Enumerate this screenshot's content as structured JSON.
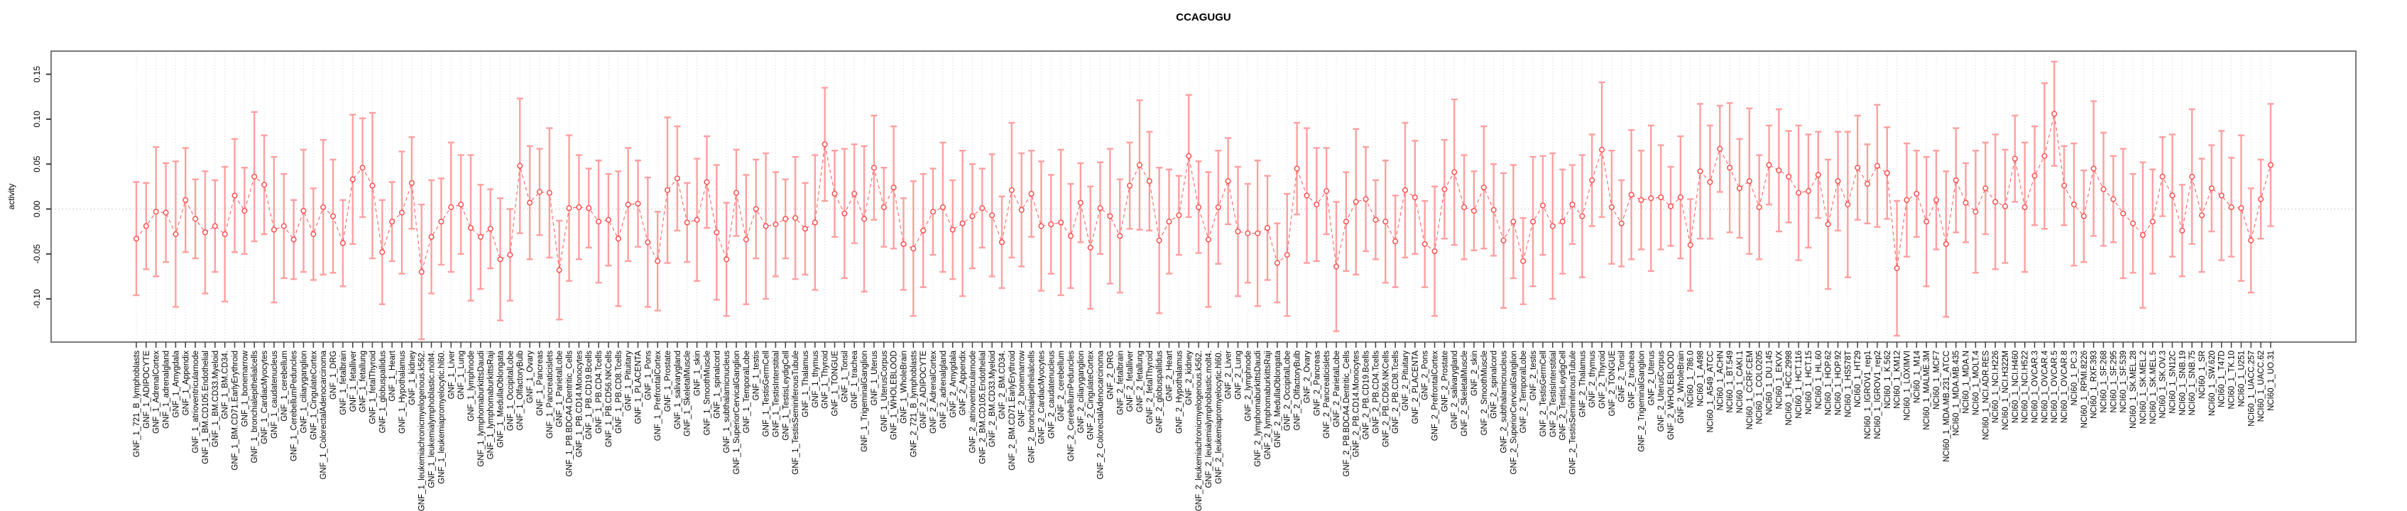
{
  "title": "CCAGUGU",
  "ylabel": "activity",
  "chart_data": {
    "type": "scatter",
    "title": "CCAGUGU",
    "xlabel": "",
    "ylabel": "activity",
    "ylim": [
      -0.148,
      0.176
    ],
    "yticks": [
      0.15,
      0.1,
      0.05,
      0.0,
      -0.05,
      -0.1
    ],
    "ytick_labels": [
      "0.15",
      "0.10",
      "0.05",
      "0.00",
      "-0.05",
      "-0.10"
    ],
    "grid": "light dotted vertical line per category; dotted horizontal line at 0",
    "legend": "none",
    "marker": "open-circle with error bars, connected by dashed line",
    "colors": {
      "point": "#ff4f4f",
      "line": "#ff5050",
      "errorbar": "#ff9f9f",
      "grid": "#d9d9d9",
      "box": "#7a7a7a",
      "tick": "#3d3d3d"
    },
    "categories": [
      "GNF_1_721_B_lymphoblasts",
      "GNF_1_ADIPOCYTE",
      "GNF_1_AdrenalCortex",
      "GNF_1_adrenalgland",
      "GNF_1_Amygdala",
      "GNF_1_Appendix",
      "GNF_1_atrioventricularnode",
      "GNF_1_BM.CD105.Endothelial",
      "GNF_1_BM.CD33.Myeloid",
      "GNF_1_BM.CD34.",
      "GNF_1_BM.CD71.EarlyErythroid",
      "GNF_1_bonemarrow",
      "GNF_1_bronchialepithelialcells",
      "GNF_1_CardiacMyocytes",
      "GNF_1_caudatenucleus",
      "GNF_1_cerebellum",
      "GNF_1_CerebellumPeduncles",
      "GNF_1_ciliaryganglion",
      "GNF_1_CingulateCortex",
      "GNF_1_ColorectalAdenocarcinoma",
      "GNF_1_DRG",
      "GNF_1_fetalbrain",
      "GNF_1_fetalliver",
      "GNF_1_fetallung",
      "GNF_1_fetalThyroid",
      "GNF_1_globuspallidus",
      "GNF_1_Heart",
      "GNF_1_Hypothalamus",
      "GNF_1_kidney",
      "GNF_1_leukemiachronicmyelogenous.k562.",
      "GNF_1_leukemialymphoblastic.molt4.",
      "GNF_1_leukemiapromyelocytic.hl60.",
      "GNF_1_Liver",
      "GNF_1_Lung",
      "GNF_1_lymphnode",
      "GNF_1_lymphomaburkittsDaudi",
      "GNF_1_lymphomaburkittsRaji",
      "GNF_1_MedullaOblongata",
      "GNF_1_OccipitalLobe",
      "GNF_1_OlfactoryBulb",
      "GNF_1_Ovary",
      "GNF_1_Pancreas",
      "GNF_1_Pancreaticislets",
      "GNF_1_ParietalLobe",
      "GNF_1_PB.BDCA4.Dentritic_Cells",
      "GNF_1_PB.CD14.Monocytes",
      "GNF_1_PB.CD19.Bcells",
      "GNF_1_PB.CD4.Tcells",
      "GNF_1_PB.CD56.NKCells",
      "GNF_1_PB.CD8.Tcells",
      "GNF_1_Pituitary",
      "GNF_1_PLACENTA",
      "GNF_1_Pons",
      "GNF_1_PrefrontalCortex",
      "GNF_1_Prostate",
      "GNF_1_salivarygland",
      "GNF_1_SkeletalMuscle",
      "GNF_1_skin",
      "GNF_1_SmoothMuscle",
      "GNF_1_spinalcord",
      "GNF_1_subthalamicnucleus",
      "GNF_1_SuperiorCervicalGanglion",
      "GNF_1_TemporalLobe",
      "GNF_1_testis",
      "GNF_1_TestisGermCell",
      "GNF_1_TestisInterstitial",
      "GNF_1_TestisLeydigCell",
      "GNF_1_TestisSeminiferousTubule",
      "GNF_1_Thalamus",
      "GNF_1_thymus",
      "GNF_1_Thyroid",
      "GNF_1_TONGUE",
      "GNF_1_Tonsil",
      "GNF_1_trachea",
      "GNF_1_TrigeminalGanglion",
      "GNF_1_Uterus",
      "GNF_1_UterusCorpus",
      "GNF_1_WHOLEBLOOD",
      "GNF_1_WholeBrain",
      "GNF_2_721_B_lymphoblasts",
      "GNF_2_ADIPOCYTE",
      "GNF_2_AdrenalCortex",
      "GNF_2_adrenalgland",
      "GNF_2_Amygdala",
      "GNF_2_Appendix",
      "GNF_2_atrioventricularnode",
      "GNF_2_BM.CD105.Endothelial",
      "GNF_2_BM.CD33.Myeloid",
      "GNF_2_BM.CD34.",
      "GNF_2_BM.CD71.EarlyErythroid",
      "GNF_2_bonemarrow",
      "GNF_2_bronchialepithelialcells",
      "GNF_2_CardiacMyocytes",
      "GNF_2_caudatenucleus",
      "GNF_2_cerebellum",
      "GNF_2_CerebellumPeduncles",
      "GNF_2_ciliaryganglion",
      "GNF_2_CingulateCortex",
      "GNF_2_ColorectalAdenocarcinoma",
      "GNF_2_DRG",
      "GNF_2_fetalbrain",
      "GNF_2_fetalliver",
      "GNF_2_fetallung",
      "GNF_2_fetalThyroid",
      "GNF_2_globuspallidus",
      "GNF_2_Heart",
      "GNF_2_Hypothalamus",
      "GNF_2_kidney",
      "GNF_2_leukemiachronicmyelogenous.k562.",
      "GNF_2_leukemialymphoblastic.molt4.",
      "GNF_2_leukemiapromyelocytic.hl60.",
      "GNF_2_Liver",
      "GNF_2_Lung",
      "GNF_2_lymphnode",
      "GNF_2_lymphomaburkittsDaudi",
      "GNF_2_lymphomaburkittsRaji",
      "GNF_2_MedullaOblongata",
      "GNF_2_OccipitalLobe",
      "GNF_2_OlfactoryBulb",
      "GNF_2_Ovary",
      "GNF_2_Pancreas",
      "GNF_2_Pancreaticislets",
      "GNF_2_ParietalLobe",
      "GNF_2_PB.BDCA4.Dentritic_Cells",
      "GNF_2_PB.CD14.Monocytes",
      "GNF_2_PB.CD19.Bcells",
      "GNF_2_PB.CD4.Tcells",
      "GNF_2_PB.CD56.NKCells",
      "GNF_2_PB.CD8.Tcells",
      "GNF_2_Pituitary",
      "GNF_2_PLACENTA",
      "GNF_2_Pons",
      "GNF_2_PrefrontalCortex",
      "GNF_2_Prostate",
      "GNF_2_salivarygland",
      "GNF_2_SkeletalMuscle",
      "GNF_2_skin",
      "GNF_2_SmoothMuscle",
      "GNF_2_spinalcord",
      "GNF_2_subthalamicnucleus",
      "GNF_2_SuperiorCervicalGanglion",
      "GNF_2_TemporalLobe",
      "GNF_2_testis",
      "GNF_2_TestisGermCell",
      "GNF_2_TestisInterstitial",
      "GNF_2_TestisLeydigCell",
      "GNF_2_TestisSeminiferousTubule",
      "GNF_2_Thalamus",
      "GNF_2_thymus",
      "GNF_2_Thyroid",
      "GNF_2_TONGUE",
      "GNF_2_Tonsil",
      "GNF_2_trachea",
      "GNF_2_TrigeminalGanglion",
      "GNF_2_Uterus",
      "GNF_2_UterusCorpus",
      "GNF_2_WHOLEBLOOD",
      "GNF_2_WholeBrain",
      "NCI60_1_786.0",
      "NCI60_1_A498",
      "NCI60_1_A549_ATCC",
      "NCI60_1_ACHN",
      "NCI60_1_BT.549",
      "NCI60_1_CAKI.1",
      "NCI60_1_CCRF.CEM",
      "NCI60_1_COLO205",
      "NCI60_1_DU.145",
      "NCI60_1_EKVX",
      "NCI60_1_HCC.2998",
      "NCI60_1_HCT.116",
      "NCI60_1_HCT.15",
      "NCI60_1_HL.60",
      "NCI60_1_HOP.62",
      "NCI60_1_HOP.92",
      "NCI60_1_HS578T",
      "NCI60_1_HT29",
      "NCI60_1_IGROV1_rep1",
      "NCI60_1_IGROV1_rep2",
      "NCI60_1_K.562",
      "NCI60_1_KM12",
      "NCI60_1_LOXIMVI",
      "NCI60_1_M14",
      "NCI60_1_MALME.3M",
      "NCI60_1_MCF7",
      "NCI60_1_MDA.MB.231_ATCC",
      "NCI60_1_MDA.MB.435",
      "NCI60_1_MDA.N",
      "NCI60_1_MOLT.4",
      "NCI60_1_NCI.ADR.RES",
      "NCI60_1_NCI.H226",
      "NCI60_1_NCI.H322M",
      "NCI60_1_NCI.H460",
      "NCI60_1_NCI.H522",
      "NCI60_1_OVCAR.3",
      "NCI60_1_OVCAR.4",
      "NCI60_1_OVCAR.5",
      "NCI60_1_OVCAR.8",
      "NCI60_1_PC.3",
      "NCI60_1_RPMI.8226",
      "NCI60_1_RXF.393",
      "NCI60_1_SF.268",
      "NCI60_1_SF.295",
      "NCI60_1_SF.539",
      "NCI60_1_SK.MEL.28",
      "NCI60_1_SK.MEL.2",
      "NCI60_1_SK.MEL.5",
      "NCI60_1_SK.OV.3",
      "NCI60_1_SN12C",
      "NCI60_1_SNB.19",
      "NCI60_1_SNB.75",
      "NCI60_1_SR",
      "NCI60_1_SW.620",
      "NCI60_1_T47D",
      "NCI60_1_TK.10",
      "NCI60_1_U251",
      "NCI60_1_UACC.257",
      "NCI60_1_UACC.62",
      "NCI60_1_UO.31"
    ],
    "series": [
      {
        "name": "activity",
        "values": [
          -0.033,
          -0.019,
          -0.003,
          -0.004,
          -0.028,
          0.01,
          -0.011,
          -0.026,
          -0.019,
          -0.028,
          0.015,
          -0.002,
          0.036,
          0.027,
          -0.023,
          -0.019,
          -0.034,
          -0.002,
          -0.028,
          0.002,
          -0.008,
          -0.038,
          0.033,
          0.046,
          0.026,
          -0.048,
          -0.014,
          -0.004,
          0.029,
          -0.07,
          -0.031,
          -0.014,
          0.002,
          0.005,
          -0.021,
          -0.031,
          -0.022,
          -0.056,
          -0.051,
          0.048,
          0.007,
          0.019,
          0.018,
          -0.068,
          0.001,
          0.002,
          0.001,
          -0.014,
          -0.012,
          -0.033,
          0.005,
          0.006,
          -0.037,
          -0.058,
          0.021,
          0.034,
          -0.015,
          -0.012,
          0.03,
          -0.026,
          -0.056,
          0.018,
          -0.034,
          0.0,
          -0.019,
          -0.017,
          -0.011,
          -0.01,
          -0.022,
          -0.015,
          0.072,
          0.017,
          -0.005,
          0.017,
          -0.011,
          0.046,
          0.002,
          0.024,
          -0.039,
          -0.044,
          -0.024,
          -0.003,
          0.002,
          -0.023,
          -0.016,
          -0.008,
          0.001,
          -0.007,
          -0.037,
          0.021,
          -0.001,
          0.017,
          -0.019,
          -0.017,
          -0.015,
          -0.03,
          0.007,
          -0.043,
          0.001,
          -0.008,
          -0.03,
          0.026,
          0.049,
          0.031,
          -0.035,
          -0.014,
          -0.007,
          0.059,
          0.002,
          -0.034,
          0.002,
          0.031,
          -0.025,
          -0.027,
          -0.027,
          -0.021,
          -0.06,
          -0.051,
          0.045,
          0.015,
          0.005,
          0.02,
          -0.064,
          -0.014,
          0.008,
          0.011,
          -0.012,
          -0.014,
          -0.036,
          0.021,
          0.013,
          -0.039,
          -0.047,
          0.022,
          0.041,
          0.002,
          -0.002,
          0.024,
          -0.001,
          -0.035,
          -0.014,
          -0.058,
          -0.014,
          0.004,
          -0.019,
          -0.014,
          0.005,
          -0.008,
          0.032,
          0.066,
          0.002,
          -0.016,
          0.016,
          0.01,
          0.012,
          0.013,
          0.003,
          0.013,
          -0.04,
          0.042,
          0.03,
          0.067,
          0.046,
          0.023,
          0.031,
          0.002,
          0.049,
          0.043,
          0.036,
          0.018,
          0.02,
          0.038,
          -0.017,
          0.031,
          0.005,
          0.046,
          0.028,
          0.048,
          0.04,
          -0.066,
          0.01,
          0.017,
          -0.014,
          0.01,
          -0.039,
          0.032,
          0.007,
          -0.003,
          0.023,
          0.008,
          0.003,
          0.056,
          0.002,
          0.037,
          0.059,
          0.106,
          0.026,
          0.005,
          -0.008,
          0.045,
          0.022,
          0.011,
          -0.005,
          -0.016,
          -0.029,
          -0.014,
          0.036,
          0.015,
          -0.024,
          0.036,
          -0.007,
          0.023,
          0.015,
          0.002,
          0.001,
          -0.035,
          0.011,
          0.049
        ],
        "errors": [
          0.063,
          0.048,
          0.072,
          0.055,
          0.081,
          0.058,
          0.044,
          0.068,
          0.051,
          0.075,
          0.063,
          0.048,
          0.072,
          0.055,
          0.081,
          0.058,
          0.044,
          0.068,
          0.051,
          0.075,
          0.063,
          0.048,
          0.072,
          0.055,
          0.081,
          0.058,
          0.044,
          0.068,
          0.051,
          0.075,
          0.063,
          0.048,
          0.072,
          0.055,
          0.081,
          0.058,
          0.044,
          0.068,
          0.051,
          0.075,
          0.063,
          0.048,
          0.072,
          0.055,
          0.081,
          0.058,
          0.044,
          0.068,
          0.051,
          0.075,
          0.063,
          0.048,
          0.072,
          0.055,
          0.081,
          0.058,
          0.044,
          0.068,
          0.051,
          0.075,
          0.063,
          0.048,
          0.072,
          0.055,
          0.081,
          0.058,
          0.044,
          0.068,
          0.051,
          0.075,
          0.063,
          0.048,
          0.072,
          0.055,
          0.081,
          0.058,
          0.044,
          0.068,
          0.051,
          0.075,
          0.063,
          0.048,
          0.072,
          0.055,
          0.081,
          0.058,
          0.044,
          0.068,
          0.051,
          0.075,
          0.063,
          0.048,
          0.072,
          0.055,
          0.081,
          0.058,
          0.044,
          0.068,
          0.051,
          0.075,
          0.063,
          0.048,
          0.072,
          0.055,
          0.081,
          0.058,
          0.044,
          0.068,
          0.051,
          0.075,
          0.063,
          0.048,
          0.072,
          0.055,
          0.081,
          0.058,
          0.044,
          0.068,
          0.051,
          0.075,
          0.063,
          0.048,
          0.072,
          0.055,
          0.081,
          0.058,
          0.044,
          0.068,
          0.051,
          0.075,
          0.063,
          0.048,
          0.072,
          0.055,
          0.081,
          0.058,
          0.044,
          0.068,
          0.051,
          0.075,
          0.063,
          0.048,
          0.072,
          0.055,
          0.081,
          0.058,
          0.044,
          0.068,
          0.051,
          0.075,
          0.063,
          0.048,
          0.072,
          0.055,
          0.081,
          0.058,
          0.044,
          0.068,
          0.051,
          0.075,
          0.063,
          0.048,
          0.072,
          0.055,
          0.081,
          0.058,
          0.044,
          0.068,
          0.051,
          0.075,
          0.063,
          0.048,
          0.072,
          0.055,
          0.081,
          0.058,
          0.044,
          0.068,
          0.051,
          0.075,
          0.063,
          0.048,
          0.072,
          0.055,
          0.081,
          0.058,
          0.044,
          0.068,
          0.051,
          0.075,
          0.063,
          0.048,
          0.072,
          0.055,
          0.081,
          0.058,
          0.044,
          0.068,
          0.051,
          0.075,
          0.063,
          0.048,
          0.072,
          0.055,
          0.081,
          0.058,
          0.044,
          0.068,
          0.051,
          0.075,
          0.063,
          0.048,
          0.072,
          0.055,
          0.081,
          0.058,
          0.044,
          0.068
        ]
      }
    ]
  }
}
